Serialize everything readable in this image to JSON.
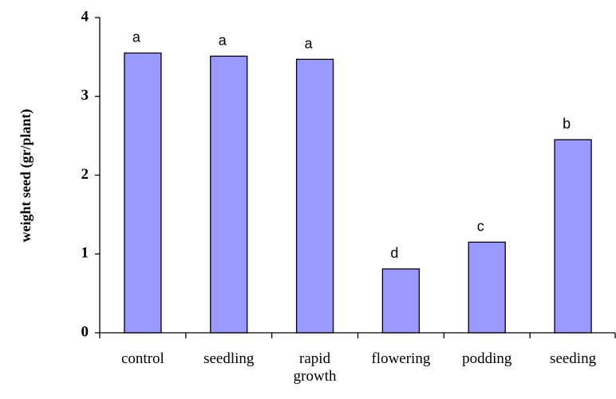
{
  "chart_data": {
    "type": "bar",
    "y_axis_label": "weight seed (gr/plant)",
    "categories": [
      "control",
      "seedling",
      "rapid growth",
      "flowering",
      "podding",
      "seeding"
    ],
    "values": [
      3.55,
      3.51,
      3.47,
      0.81,
      1.15,
      2.45
    ],
    "annotations": [
      "a",
      "a",
      "a",
      "d",
      "c",
      "b"
    ],
    "color": "#9999ff",
    "ylim": [
      0,
      4
    ],
    "yticks": [
      0,
      1,
      2,
      3,
      4
    ],
    "grid": false
  }
}
